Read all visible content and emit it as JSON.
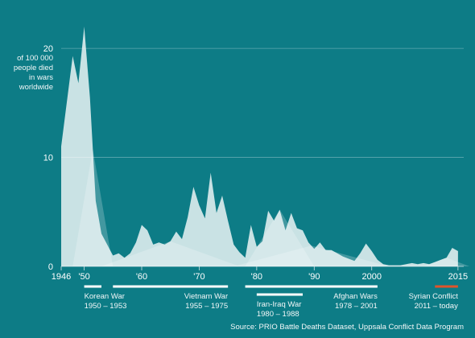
{
  "colors": {
    "background": "#0d7c86",
    "grid": "#5fa8b0",
    "series_fill": "#ffffff",
    "bar": "#ffffff",
    "highlight_bar": "#e0542b"
  },
  "chart_data": {
    "type": "area",
    "title": "",
    "xlabel": "",
    "ylabel": "of 100 000 people died in wars worldwide",
    "xlim": [
      1946,
      2016
    ],
    "ylim": [
      0,
      22
    ],
    "yticks": [
      "0",
      "10",
      "20"
    ],
    "xticks": [
      {
        "value": 1946,
        "label": "1946"
      },
      {
        "value": 1950,
        "label": "'50"
      },
      {
        "value": 1960,
        "label": "'60"
      },
      {
        "value": 1970,
        "label": "'70"
      },
      {
        "value": 1980,
        "label": "'80"
      },
      {
        "value": 1990,
        "label": "'90"
      },
      {
        "value": 2000,
        "label": "2000"
      },
      {
        "value": 2015,
        "label": "2015"
      }
    ],
    "grid": "horizontal",
    "series": [
      {
        "points": [
          [
            1946,
            11
          ],
          [
            1948,
            19.3
          ],
          [
            1949,
            16.8
          ],
          [
            1950,
            22
          ],
          [
            1951,
            15.5
          ],
          [
            1952,
            6
          ],
          [
            1953,
            3
          ],
          [
            1955,
            1
          ],
          [
            1956,
            1.2
          ],
          [
            1957,
            0.8
          ],
          [
            1958,
            1.2
          ],
          [
            1959,
            2.2
          ],
          [
            1960,
            3.8
          ],
          [
            1961,
            3.3
          ],
          [
            1962,
            2
          ],
          [
            1963,
            2.2
          ],
          [
            1964,
            2
          ],
          [
            1965,
            2.3
          ],
          [
            1966,
            3.2
          ],
          [
            1967,
            2.5
          ],
          [
            1968,
            4.5
          ],
          [
            1969,
            7.3
          ],
          [
            1970,
            5.6
          ],
          [
            1971,
            4.4
          ],
          [
            1972,
            8.6
          ],
          [
            1973,
            4.9
          ],
          [
            1974,
            6.5
          ],
          [
            1975,
            4.2
          ],
          [
            1976,
            2
          ],
          [
            1977,
            1.3
          ],
          [
            1978,
            0.8
          ],
          [
            1979,
            3.8
          ],
          [
            1980,
            1.8
          ],
          [
            1981,
            2.3
          ],
          [
            1982,
            5.1
          ],
          [
            1983,
            4.2
          ],
          [
            1984,
            5.2
          ],
          [
            1985,
            3.3
          ],
          [
            1986,
            4.9
          ],
          [
            1987,
            3.5
          ],
          [
            1988,
            3.3
          ],
          [
            1989,
            2.2
          ],
          [
            1990,
            1.6
          ],
          [
            1991,
            2.2
          ],
          [
            1992,
            1.5
          ],
          [
            1993,
            1.5
          ],
          [
            1994,
            1.2
          ],
          [
            1995,
            0.9
          ],
          [
            1996,
            0.7
          ],
          [
            1997,
            0.5
          ],
          [
            1998,
            1.2
          ],
          [
            1999,
            2.1
          ],
          [
            2000,
            1.4
          ],
          [
            2001,
            0.6
          ],
          [
            2002,
            0.2
          ],
          [
            2003,
            0.1
          ],
          [
            2004,
            0.1
          ],
          [
            2005,
            0.1
          ],
          [
            2006,
            0.2
          ],
          [
            2007,
            0.3
          ],
          [
            2008,
            0.2
          ],
          [
            2009,
            0.3
          ],
          [
            2010,
            0.2
          ],
          [
            2011,
            0.4
          ],
          [
            2012,
            0.6
          ],
          [
            2013,
            0.8
          ],
          [
            2014,
            1.7
          ],
          [
            2015,
            1.4
          ]
        ]
      }
    ],
    "annotations": [
      {
        "name": "Korean War",
        "years": "1950 – 1953",
        "start": 1950,
        "end": 1953,
        "color": "#ffffff"
      },
      {
        "name": "Vietnam War",
        "years": "1955 – 1975",
        "start": 1955,
        "end": 1975,
        "color": "#ffffff"
      },
      {
        "name": "Iran-Iraq War",
        "years": "1980 – 1988",
        "start": 1980,
        "end": 1988,
        "color": "#ffffff"
      },
      {
        "name": "Afghan Wars",
        "years": "1978 – 2001",
        "start": 1978,
        "end": 2001,
        "color": "#ffffff"
      },
      {
        "name": "Syrian Conflict",
        "years": "2011 – today",
        "start": 2011,
        "end": 2015,
        "color": "#e0542b"
      }
    ],
    "source": "Source: PRIO Battle Deaths Dataset, Uppsala Conflict Data Program"
  }
}
